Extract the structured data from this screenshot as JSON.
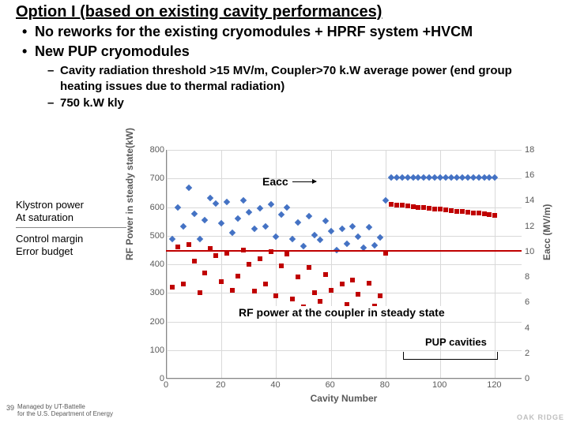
{
  "title": "Option I (based on existing cavity performances)",
  "bullets": [
    "No reworks for the existing cryomodules + HPRF system +HVCM",
    "New PUP cryomodules"
  ],
  "subbullets": [
    "Cavity radiation threshold >15 MV/m, Coupler>70 k.W average power (end group heating issues due to thermal radiation)",
    "750 k.W kly"
  ],
  "chart": {
    "type": "scatter",
    "xlabel": "Cavity Number",
    "ylabel_left": "RF Power in steady state(kW)",
    "ylabel_right": "Eacc (MV/m)",
    "xlim": [
      0,
      130
    ],
    "xtick_step": 20,
    "ylim_left": [
      0,
      800
    ],
    "ytick_left_step": 100,
    "ylim_right": [
      0,
      18
    ],
    "ytick_right_step": 2,
    "grid_color": "#d9d9d9",
    "background_color": "#ffffff",
    "series": [
      {
        "name": "Eacc",
        "marker": "diamond",
        "color": "#4472c4",
        "axis": "right",
        "data": [
          [
            2,
            11
          ],
          [
            4,
            13.5
          ],
          [
            6,
            12
          ],
          [
            8,
            15
          ],
          [
            10,
            13
          ],
          [
            12,
            11
          ],
          [
            14,
            12.5
          ],
          [
            16,
            14.2
          ],
          [
            18,
            13.8
          ],
          [
            20,
            12.2
          ],
          [
            22,
            13.9
          ],
          [
            24,
            11.5
          ],
          [
            26,
            12.6
          ],
          [
            28,
            14.0
          ],
          [
            30,
            13.1
          ],
          [
            32,
            11.8
          ],
          [
            34,
            13.4
          ],
          [
            36,
            12.0
          ],
          [
            38,
            13.7
          ],
          [
            40,
            11.2
          ],
          [
            42,
            12.9
          ],
          [
            44,
            13.5
          ],
          [
            46,
            11.0
          ],
          [
            48,
            12.3
          ],
          [
            50,
            10.4
          ],
          [
            52,
            12.8
          ],
          [
            54,
            11.3
          ],
          [
            56,
            10.9
          ],
          [
            58,
            12.4
          ],
          [
            60,
            11.6
          ],
          [
            62,
            10.1
          ],
          [
            64,
            11.8
          ],
          [
            66,
            10.6
          ],
          [
            68,
            12.0
          ],
          [
            70,
            11.2
          ],
          [
            72,
            10.3
          ],
          [
            74,
            11.9
          ],
          [
            76,
            10.5
          ],
          [
            78,
            11.1
          ],
          [
            80,
            14.0
          ],
          [
            82,
            15.8
          ],
          [
            84,
            15.8
          ],
          [
            86,
            15.8
          ],
          [
            88,
            15.8
          ],
          [
            90,
            15.8
          ],
          [
            92,
            15.8
          ],
          [
            94,
            15.8
          ],
          [
            96,
            15.8
          ],
          [
            98,
            15.8
          ],
          [
            100,
            15.8
          ],
          [
            102,
            15.8
          ],
          [
            104,
            15.8
          ],
          [
            106,
            15.8
          ],
          [
            108,
            15.8
          ],
          [
            110,
            15.8
          ],
          [
            112,
            15.8
          ],
          [
            114,
            15.8
          ],
          [
            116,
            15.8
          ],
          [
            118,
            15.8
          ],
          [
            120,
            15.8
          ]
        ]
      },
      {
        "name": "RF power at the coupler in steady state",
        "marker": "square",
        "color": "#c00000",
        "axis": "left",
        "data": [
          [
            2,
            320
          ],
          [
            4,
            460
          ],
          [
            6,
            330
          ],
          [
            8,
            470
          ],
          [
            10,
            410
          ],
          [
            12,
            300
          ],
          [
            14,
            370
          ],
          [
            16,
            455
          ],
          [
            18,
            430
          ],
          [
            20,
            340
          ],
          [
            22,
            440
          ],
          [
            24,
            310
          ],
          [
            26,
            360
          ],
          [
            28,
            450
          ],
          [
            30,
            400
          ],
          [
            32,
            305
          ],
          [
            34,
            420
          ],
          [
            36,
            330
          ],
          [
            38,
            445
          ],
          [
            40,
            290
          ],
          [
            42,
            395
          ],
          [
            44,
            435
          ],
          [
            46,
            280
          ],
          [
            48,
            355
          ],
          [
            50,
            250
          ],
          [
            52,
            390
          ],
          [
            54,
            300
          ],
          [
            56,
            270
          ],
          [
            58,
            365
          ],
          [
            60,
            310
          ],
          [
            62,
            240
          ],
          [
            64,
            330
          ],
          [
            66,
            260
          ],
          [
            68,
            345
          ],
          [
            70,
            295
          ],
          [
            72,
            245
          ],
          [
            74,
            335
          ],
          [
            76,
            255
          ],
          [
            78,
            290
          ],
          [
            80,
            440
          ],
          [
            82,
            610
          ],
          [
            84,
            608
          ],
          [
            86,
            606
          ],
          [
            88,
            604
          ],
          [
            90,
            602
          ],
          [
            92,
            600
          ],
          [
            94,
            598
          ],
          [
            96,
            596
          ],
          [
            98,
            594
          ],
          [
            100,
            592
          ],
          [
            102,
            590
          ],
          [
            104,
            588
          ],
          [
            106,
            586
          ],
          [
            108,
            584
          ],
          [
            110,
            582
          ],
          [
            112,
            580
          ],
          [
            114,
            578
          ],
          [
            116,
            576
          ],
          [
            118,
            574
          ],
          [
            120,
            572
          ]
        ]
      }
    ],
    "annotations": {
      "eacc_label": "Eacc",
      "rf_label": "RF power at the coupler in steady state",
      "pup_label": "PUP cavities",
      "left_label1": "Klystron power\nAt saturation",
      "left_label2": "Control margin\nError budget",
      "control_line_y_left": 450
    }
  },
  "footer": {
    "page": "39",
    "line1": "Managed by UT-Battelle",
    "line2": "for the U.S. Department of Energy",
    "logo": "OAK RIDGE"
  }
}
